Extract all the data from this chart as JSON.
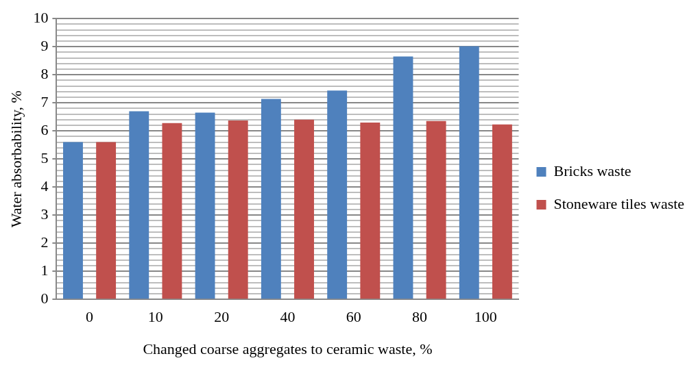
{
  "chart_data": {
    "type": "bar",
    "xlabel": "Changed coarse aggregates to ceramic waste, %",
    "ylabel": "Water absorbability, %",
    "categories": [
      "0",
      "10",
      "20",
      "40",
      "60",
      "80",
      "100"
    ],
    "series": [
      {
        "name": "Bricks waste",
        "color": "#4f81bd",
        "values": [
          5.6,
          6.7,
          6.65,
          7.14,
          7.44,
          8.65,
          9.02
        ]
      },
      {
        "name": "Stoneware tiles waste",
        "color": "#c0504d",
        "values": [
          5.6,
          6.28,
          6.37,
          6.4,
          6.3,
          6.35,
          6.23
        ]
      }
    ],
    "ylim": [
      0,
      10
    ],
    "yticks": [
      0,
      {
        "value": 0.2,
        "label": null
      },
      {
        "value": 0.4,
        "label": null
      },
      {
        "value": 0.6,
        "label": null
      },
      {
        "value": 0.8,
        "label": null
      },
      1,
      {
        "value": 1.2,
        "label": null
      },
      {
        "value": 1.4,
        "label": null
      },
      {
        "value": 1.6,
        "label": null
      },
      {
        "value": 1.8,
        "label": null
      },
      2,
      {
        "value": 2.2,
        "label": null
      },
      {
        "value": 2.4,
        "label": null
      },
      {
        "value": 2.6,
        "label": null
      },
      {
        "value": 2.8,
        "label": null
      },
      3,
      {
        "value": 3.2,
        "label": null
      },
      {
        "value": 3.4,
        "label": null
      },
      {
        "value": 3.6,
        "label": null
      },
      {
        "value": 3.8,
        "label": null
      },
      4,
      {
        "value": 4.2,
        "label": null
      },
      {
        "value": 4.4,
        "label": null
      },
      {
        "value": 4.6,
        "label": null
      },
      {
        "value": 4.8,
        "label": null
      },
      5,
      {
        "value": 5.2,
        "label": null
      },
      {
        "value": 5.4,
        "label": null
      },
      {
        "value": 5.6,
        "label": null
      },
      {
        "value": 5.8,
        "label": null
      },
      6,
      {
        "value": 6.2,
        "label": null
      },
      {
        "value": 6.4,
        "label": null
      },
      {
        "value": 6.6,
        "label": null
      },
      {
        "value": 6.8,
        "label": null
      },
      7,
      {
        "value": 7.2,
        "label": null
      },
      {
        "value": 7.4,
        "label": null
      },
      {
        "value": 7.6,
        "label": null
      },
      {
        "value": 7.8,
        "label": null
      },
      8,
      {
        "value": 8.2,
        "label": null
      },
      {
        "value": 8.4,
        "label": null
      },
      {
        "value": 8.6,
        "label": null
      },
      {
        "value": 8.8,
        "label": null
      },
      9,
      {
        "value": 9.2,
        "label": null
      },
      {
        "value": 9.4,
        "label": null
      },
      {
        "value": 9.6,
        "label": null
      },
      {
        "value": 9.8,
        "label": null
      },
      10
    ],
    "grid": "y",
    "legend": "right"
  }
}
